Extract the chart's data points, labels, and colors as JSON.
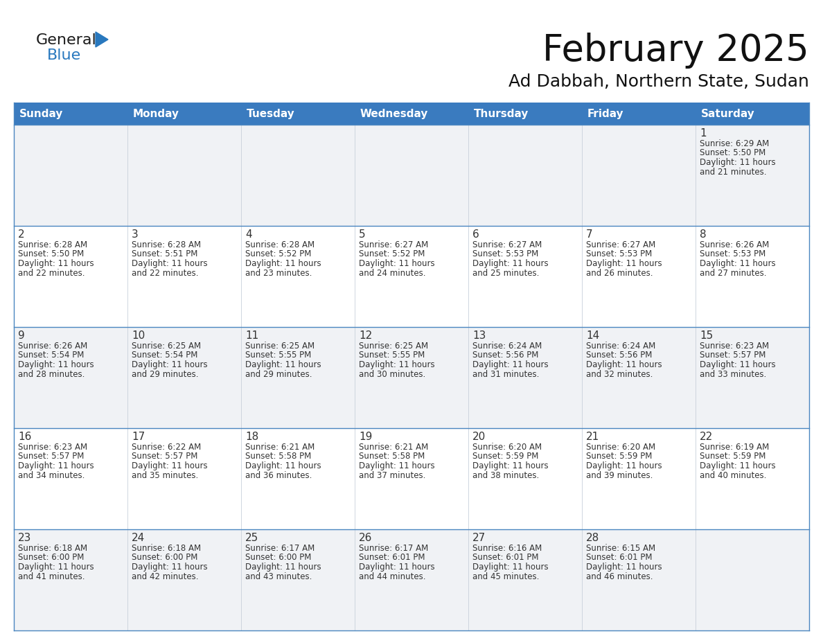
{
  "title": "February 2025",
  "subtitle": "Ad Dabbah, Northern State, Sudan",
  "header_color": "#3a7bbf",
  "header_text_color": "#ffffff",
  "cell_bg_week0": "#f0f2f5",
  "cell_bg_week1": "#ffffff",
  "cell_bg_week2": "#f0f2f5",
  "cell_bg_week3": "#ffffff",
  "cell_bg_week4": "#f0f2f5",
  "border_color": "#4a86c0",
  "text_color": "#333333",
  "day_number_color": "#333333",
  "days_of_week": [
    "Sunday",
    "Monday",
    "Tuesday",
    "Wednesday",
    "Thursday",
    "Friday",
    "Saturday"
  ],
  "weeks": [
    [
      {
        "day": null,
        "sunrise": null,
        "sunset": null,
        "daylight": null
      },
      {
        "day": null,
        "sunrise": null,
        "sunset": null,
        "daylight": null
      },
      {
        "day": null,
        "sunrise": null,
        "sunset": null,
        "daylight": null
      },
      {
        "day": null,
        "sunrise": null,
        "sunset": null,
        "daylight": null
      },
      {
        "day": null,
        "sunrise": null,
        "sunset": null,
        "daylight": null
      },
      {
        "day": null,
        "sunrise": null,
        "sunset": null,
        "daylight": null
      },
      {
        "day": 1,
        "sunrise": "6:29 AM",
        "sunset": "5:50 PM",
        "daylight": "11 hours and 21 minutes."
      }
    ],
    [
      {
        "day": 2,
        "sunrise": "6:28 AM",
        "sunset": "5:50 PM",
        "daylight": "11 hours and 22 minutes."
      },
      {
        "day": 3,
        "sunrise": "6:28 AM",
        "sunset": "5:51 PM",
        "daylight": "11 hours and 22 minutes."
      },
      {
        "day": 4,
        "sunrise": "6:28 AM",
        "sunset": "5:52 PM",
        "daylight": "11 hours and 23 minutes."
      },
      {
        "day": 5,
        "sunrise": "6:27 AM",
        "sunset": "5:52 PM",
        "daylight": "11 hours and 24 minutes."
      },
      {
        "day": 6,
        "sunrise": "6:27 AM",
        "sunset": "5:53 PM",
        "daylight": "11 hours and 25 minutes."
      },
      {
        "day": 7,
        "sunrise": "6:27 AM",
        "sunset": "5:53 PM",
        "daylight": "11 hours and 26 minutes."
      },
      {
        "day": 8,
        "sunrise": "6:26 AM",
        "sunset": "5:53 PM",
        "daylight": "11 hours and 27 minutes."
      }
    ],
    [
      {
        "day": 9,
        "sunrise": "6:26 AM",
        "sunset": "5:54 PM",
        "daylight": "11 hours and 28 minutes."
      },
      {
        "day": 10,
        "sunrise": "6:25 AM",
        "sunset": "5:54 PM",
        "daylight": "11 hours and 29 minutes."
      },
      {
        "day": 11,
        "sunrise": "6:25 AM",
        "sunset": "5:55 PM",
        "daylight": "11 hours and 29 minutes."
      },
      {
        "day": 12,
        "sunrise": "6:25 AM",
        "sunset": "5:55 PM",
        "daylight": "11 hours and 30 minutes."
      },
      {
        "day": 13,
        "sunrise": "6:24 AM",
        "sunset": "5:56 PM",
        "daylight": "11 hours and 31 minutes."
      },
      {
        "day": 14,
        "sunrise": "6:24 AM",
        "sunset": "5:56 PM",
        "daylight": "11 hours and 32 minutes."
      },
      {
        "day": 15,
        "sunrise": "6:23 AM",
        "sunset": "5:57 PM",
        "daylight": "11 hours and 33 minutes."
      }
    ],
    [
      {
        "day": 16,
        "sunrise": "6:23 AM",
        "sunset": "5:57 PM",
        "daylight": "11 hours and 34 minutes."
      },
      {
        "day": 17,
        "sunrise": "6:22 AM",
        "sunset": "5:57 PM",
        "daylight": "11 hours and 35 minutes."
      },
      {
        "day": 18,
        "sunrise": "6:21 AM",
        "sunset": "5:58 PM",
        "daylight": "11 hours and 36 minutes."
      },
      {
        "day": 19,
        "sunrise": "6:21 AM",
        "sunset": "5:58 PM",
        "daylight": "11 hours and 37 minutes."
      },
      {
        "day": 20,
        "sunrise": "6:20 AM",
        "sunset": "5:59 PM",
        "daylight": "11 hours and 38 minutes."
      },
      {
        "day": 21,
        "sunrise": "6:20 AM",
        "sunset": "5:59 PM",
        "daylight": "11 hours and 39 minutes."
      },
      {
        "day": 22,
        "sunrise": "6:19 AM",
        "sunset": "5:59 PM",
        "daylight": "11 hours and 40 minutes."
      }
    ],
    [
      {
        "day": 23,
        "sunrise": "6:18 AM",
        "sunset": "6:00 PM",
        "daylight": "11 hours and 41 minutes."
      },
      {
        "day": 24,
        "sunrise": "6:18 AM",
        "sunset": "6:00 PM",
        "daylight": "11 hours and 42 minutes."
      },
      {
        "day": 25,
        "sunrise": "6:17 AM",
        "sunset": "6:00 PM",
        "daylight": "11 hours and 43 minutes."
      },
      {
        "day": 26,
        "sunrise": "6:17 AM",
        "sunset": "6:01 PM",
        "daylight": "11 hours and 44 minutes."
      },
      {
        "day": 27,
        "sunrise": "6:16 AM",
        "sunset": "6:01 PM",
        "daylight": "11 hours and 45 minutes."
      },
      {
        "day": 28,
        "sunrise": "6:15 AM",
        "sunset": "6:01 PM",
        "daylight": "11 hours and 46 minutes."
      },
      {
        "day": null,
        "sunrise": null,
        "sunset": null,
        "daylight": null
      }
    ]
  ],
  "logo_text_general": "General",
  "logo_text_blue": "Blue",
  "logo_color_general": "#1a1a1a",
  "logo_color_blue": "#2878be",
  "logo_triangle_color": "#2878be",
  "title_fontsize": 38,
  "subtitle_fontsize": 18,
  "header_fontsize": 11,
  "day_num_fontsize": 11,
  "cell_fontsize": 8.5
}
